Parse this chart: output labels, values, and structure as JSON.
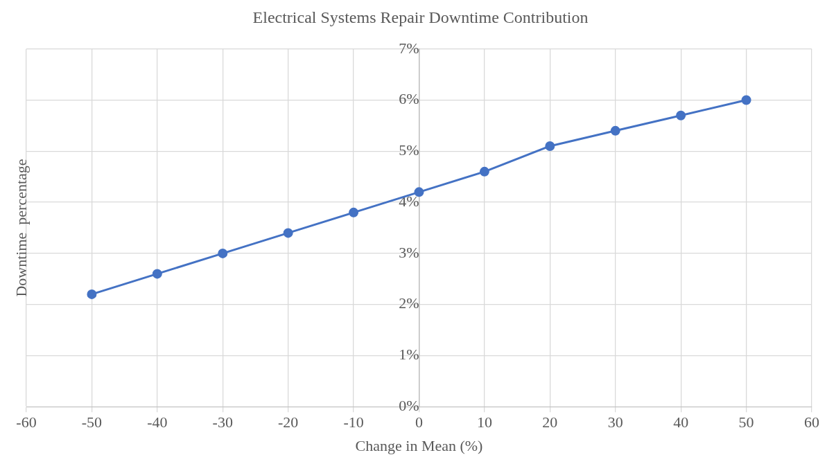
{
  "chart_data": {
    "type": "line",
    "title": "Electrical Systems Repair Downtime Contribution",
    "xlabel": "Change in Mean (%)",
    "ylabel": "Downtime  percentage",
    "x": [
      -50,
      -40,
      -30,
      -20,
      -10,
      0,
      10,
      20,
      30,
      40,
      50
    ],
    "series": [
      {
        "color": "#4472c4",
        "values": [
          2.2,
          2.6,
          3.0,
          3.4,
          3.8,
          4.2,
          4.6,
          5.1,
          5.4,
          5.7,
          6.0
        ]
      }
    ],
    "xlim": [
      -60,
      60
    ],
    "xticks": [
      -60,
      -50,
      -40,
      -30,
      -20,
      -10,
      0,
      10,
      20,
      30,
      40,
      50,
      60
    ],
    "ylim": [
      0,
      7
    ],
    "yticks": [
      {
        "value": 0,
        "label": "0%"
      },
      {
        "value": 1,
        "label": "1%"
      },
      {
        "value": 2,
        "label": "2%"
      },
      {
        "value": 3,
        "label": "3%"
      },
      {
        "value": 4,
        "label": "4%"
      },
      {
        "value": 5,
        "label": "5%"
      },
      {
        "value": 6,
        "label": "6%"
      },
      {
        "value": 7,
        "label": "7%"
      }
    ],
    "grid": true,
    "legend": false,
    "marker": "circle",
    "line_style": "solid"
  }
}
